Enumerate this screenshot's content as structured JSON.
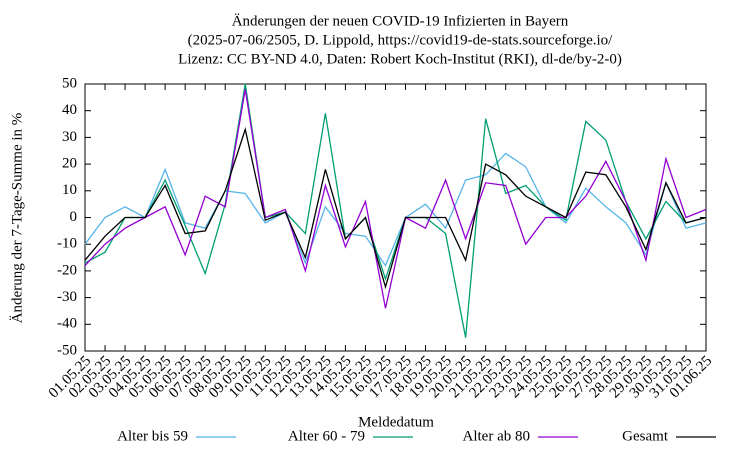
{
  "chart_data": {
    "type": "line",
    "title": [
      "Änderungen der neuen COVID-19 Infizierten in Bayern",
      "(2025-07-06/2505, D. Lippold, https://covid19-de-stats.sourceforge.io/",
      "Lizenz: CC BY-ND 4.0, Daten: Robert Koch-Institut (RKI), dl-de/by-2-0)"
    ],
    "x_label": "Meldedatum",
    "y_label": "Änderung der 7-Tage-Summe in %",
    "categories": [
      "01.05.25",
      "02.05.25",
      "03.05.25",
      "04.05.25",
      "05.05.25",
      "06.05.25",
      "07.05.25",
      "08.05.25",
      "09.05.25",
      "10.05.25",
      "11.05.25",
      "12.05.25",
      "13.05.25",
      "14.05.25",
      "15.05.25",
      "16.05.25",
      "17.05.25",
      "18.05.25",
      "19.05.25",
      "20.05.25",
      "21.05.25",
      "22.05.25",
      "23.05.25",
      "24.05.25",
      "25.05.25",
      "26.05.25",
      "27.05.25",
      "28.05.25",
      "29.05.25",
      "30.05.25",
      "31.05.25",
      "01.06.25"
    ],
    "series": [
      {
        "name": "Alter bis 59",
        "color": "#56b4e9",
        "values": [
          -10,
          0,
          4,
          0,
          18,
          -2,
          -4,
          10,
          9,
          -2,
          2,
          -17,
          4,
          -6,
          -7,
          -18,
          0,
          5,
          -4,
          14,
          16,
          24,
          19,
          4,
          -2,
          11,
          4,
          -2,
          -14,
          13,
          -4,
          -2
        ]
      },
      {
        "name": "Alter 60 - 79",
        "color": "#009e73",
        "values": [
          -17,
          -13,
          0,
          0,
          14,
          -3,
          -21,
          5,
          50,
          0,
          2,
          -6,
          39,
          -8,
          0,
          -23,
          0,
          0,
          -6,
          -45,
          37,
          9,
          12,
          4,
          -1,
          36,
          29,
          6,
          -8,
          6,
          -2,
          0
        ]
      },
      {
        "name": "Alter ab 80",
        "color": "#9400d3",
        "values": [
          -18,
          -10,
          -4,
          0,
          4,
          -14,
          8,
          4,
          48,
          0,
          3,
          -20,
          12,
          -11,
          6,
          -34,
          0,
          -4,
          14,
          -8,
          13,
          12,
          -10,
          0,
          0,
          8,
          21,
          6,
          -16,
          22,
          0,
          3
        ]
      },
      {
        "name": "Gesamt",
        "color": "#000000",
        "values": [
          -16,
          -7,
          0,
          0,
          12,
          -6,
          -5,
          10,
          33,
          -1,
          2,
          -15,
          18,
          -8,
          0,
          -26,
          0,
          0,
          0,
          -16,
          20,
          16,
          8,
          4,
          0,
          17,
          16,
          4,
          -12,
          13,
          -2,
          0
        ]
      }
    ],
    "ylim": [
      -50,
      50
    ],
    "yticks": [
      -50,
      -40,
      -30,
      -20,
      -10,
      0,
      10,
      20,
      30,
      40,
      50
    ],
    "legend": "bottom"
  }
}
